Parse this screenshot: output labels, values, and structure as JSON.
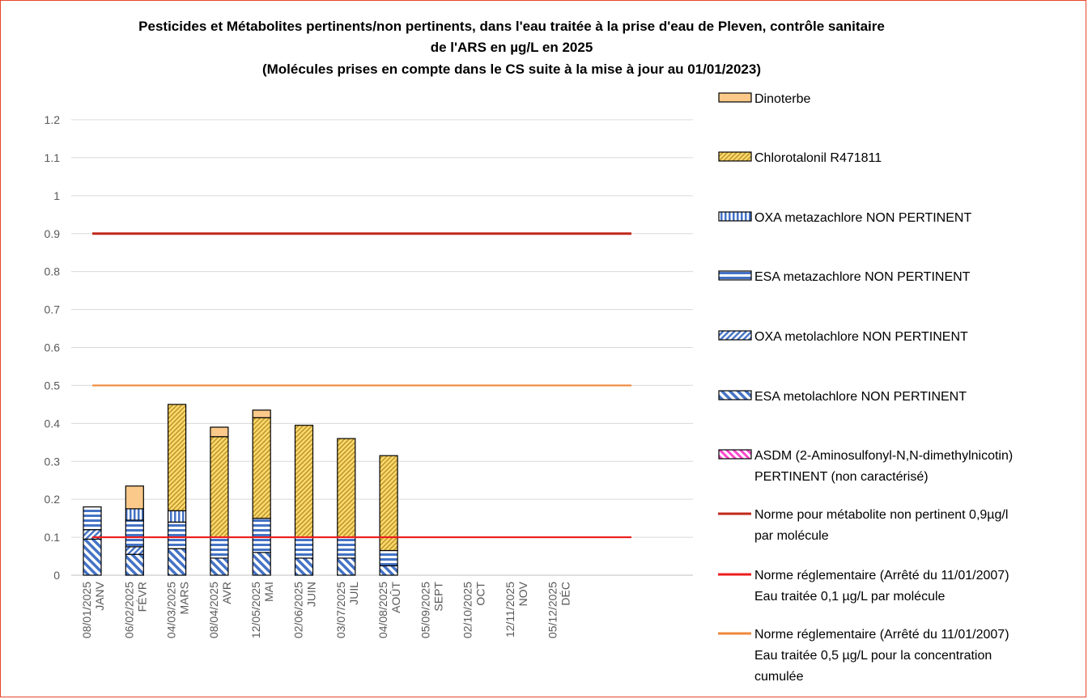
{
  "chart_data": {
    "type": "bar",
    "stacked": true,
    "title": [
      "Pesticides et Métabolites pertinents/non pertinents, dans l'eau traitée à la prise d'eau de Pleven, contrôle sanitaire",
      "de l'ARS en µg/L  en 2025",
      "(Molécules prises en compte dans le CS suite à la mise à jour au 01/01/2023)"
    ],
    "ylim": [
      0,
      1.2
    ],
    "yticks": [
      "0",
      "0.1",
      "0.2",
      "0.3",
      "0.4",
      "0.5",
      "0.6",
      "0.7",
      "0.8",
      "0.9",
      "1",
      "1.1",
      "1.2"
    ],
    "grid": true,
    "legend_position": "right",
    "categories": [
      {
        "date": "08/01/2025",
        "month": "JANV"
      },
      {
        "date": "06/02/2025",
        "month": "FÉVR"
      },
      {
        "date": "04/03/2025",
        "month": "MARS"
      },
      {
        "date": "08/04/2025",
        "month": "AVR"
      },
      {
        "date": "12/05/2025",
        "month": "MAI"
      },
      {
        "date": "02/06/2025",
        "month": "JUIN"
      },
      {
        "date": "03/07/2025",
        "month": "JUIL"
      },
      {
        "date": "04/08/2025",
        "month": "AOÛT"
      },
      {
        "date": "05/09/2025",
        "month": "SEPT"
      },
      {
        "date": "02/10/2025",
        "month": "OCT"
      },
      {
        "date": "12/11/2025",
        "month": "NOV"
      },
      {
        "date": "05/12/2025",
        "month": "DÉC"
      }
    ],
    "series": [
      {
        "name": "ASDM (2-Aminosulfonyl-N,N-dimethylnicotin) PERTINENT (non caractérisé)",
        "legend_lines": [
          "ASDM (2-Aminosulfonyl-N,N-dimethylnicotin)",
          "PERTINENT (non caractérisé)"
        ],
        "pattern": "asdm",
        "values": [
          0,
          0,
          0,
          0,
          0,
          0,
          0,
          0,
          null,
          null,
          null,
          null
        ]
      },
      {
        "name": "ESA metolachlore NON PERTINENT",
        "legend_lines": [
          "ESA metolachlore NON PERTINENT"
        ],
        "pattern": "esa_meto",
        "values": [
          0.095,
          0.055,
          0.07,
          0.045,
          0.06,
          0.045,
          0.045,
          0.025,
          null,
          null,
          null,
          null
        ]
      },
      {
        "name": "OXA metolachlore NON PERTINENT",
        "legend_lines": [
          "OXA metolachlore NON PERTINENT"
        ],
        "pattern": "oxa_meto",
        "values": [
          0.025,
          0.02,
          0,
          0,
          0,
          0,
          0,
          0,
          null,
          null,
          null,
          null
        ]
      },
      {
        "name": "ESA metazachlore NON PERTINENT",
        "legend_lines": [
          "ESA metazachlore NON PERTINENT"
        ],
        "pattern": "esa_meta",
        "values": [
          0.06,
          0.07,
          0.07,
          0.055,
          0.09,
          0.055,
          0.055,
          0.04,
          null,
          null,
          null,
          null
        ]
      },
      {
        "name": "OXA metazachlore NON PERTINENT",
        "legend_lines": [
          "OXA metazachlore NON PERTINENT"
        ],
        "pattern": "oxa_meta",
        "values": [
          0,
          0.03,
          0.03,
          0,
          0,
          0,
          0,
          0,
          null,
          null,
          null,
          null
        ]
      },
      {
        "name": "Chlorotalonil R471811",
        "legend_lines": [
          "Chlorotalonil R471811"
        ],
        "pattern": "chloro",
        "values": [
          0,
          0,
          0.28,
          0.265,
          0.265,
          0.295,
          0.26,
          0.25,
          null,
          null,
          null,
          null
        ]
      },
      {
        "name": "Dinoterbe",
        "legend_lines": [
          "Dinoterbe"
        ],
        "pattern": "dino",
        "values": [
          0,
          0.06,
          0,
          0.025,
          0.02,
          0,
          0,
          0,
          null,
          null,
          null,
          null
        ]
      }
    ],
    "lines": [
      {
        "name": "Norme pour métabolite non pertinent 0,9µg/l par molécule",
        "legend_lines": [
          "Norme pour métabolite non pertinent 0,9µg/l",
          "par molécule"
        ],
        "value": 0.9,
        "color": "#c0281b"
      },
      {
        "name": "Norme réglementaire  (Arrêté du 11/01/2007) Eau traitée 0,1 µg/L par molécule",
        "legend_lines": [
          "Norme réglementaire  (Arrêté du 11/01/2007)",
          "Eau traitée 0,1 µg/L par molécule"
        ],
        "value": 0.1,
        "color": "#ee1c1c"
      },
      {
        "name": "Norme réglementaire (Arrêté du 11/01/2007) Eau traitée 0,5 µg/L pour la concentration cumulée",
        "legend_lines": [
          "Norme réglementaire (Arrêté du 11/01/2007)",
          "Eau traitée 0,5 µg/L pour la concentration",
          "cumulée"
        ],
        "value": 0.5,
        "color": "#f0883a"
      }
    ],
    "legend_order": [
      {
        "kind": "series",
        "index": 6
      },
      {
        "kind": "series",
        "index": 5
      },
      {
        "kind": "series",
        "index": 4
      },
      {
        "kind": "series",
        "index": 3
      },
      {
        "kind": "series",
        "index": 2
      },
      {
        "kind": "series",
        "index": 1
      },
      {
        "kind": "series",
        "index": 0
      },
      {
        "kind": "line",
        "index": 0
      },
      {
        "kind": "line",
        "index": 1
      },
      {
        "kind": "line",
        "index": 2
      }
    ]
  }
}
